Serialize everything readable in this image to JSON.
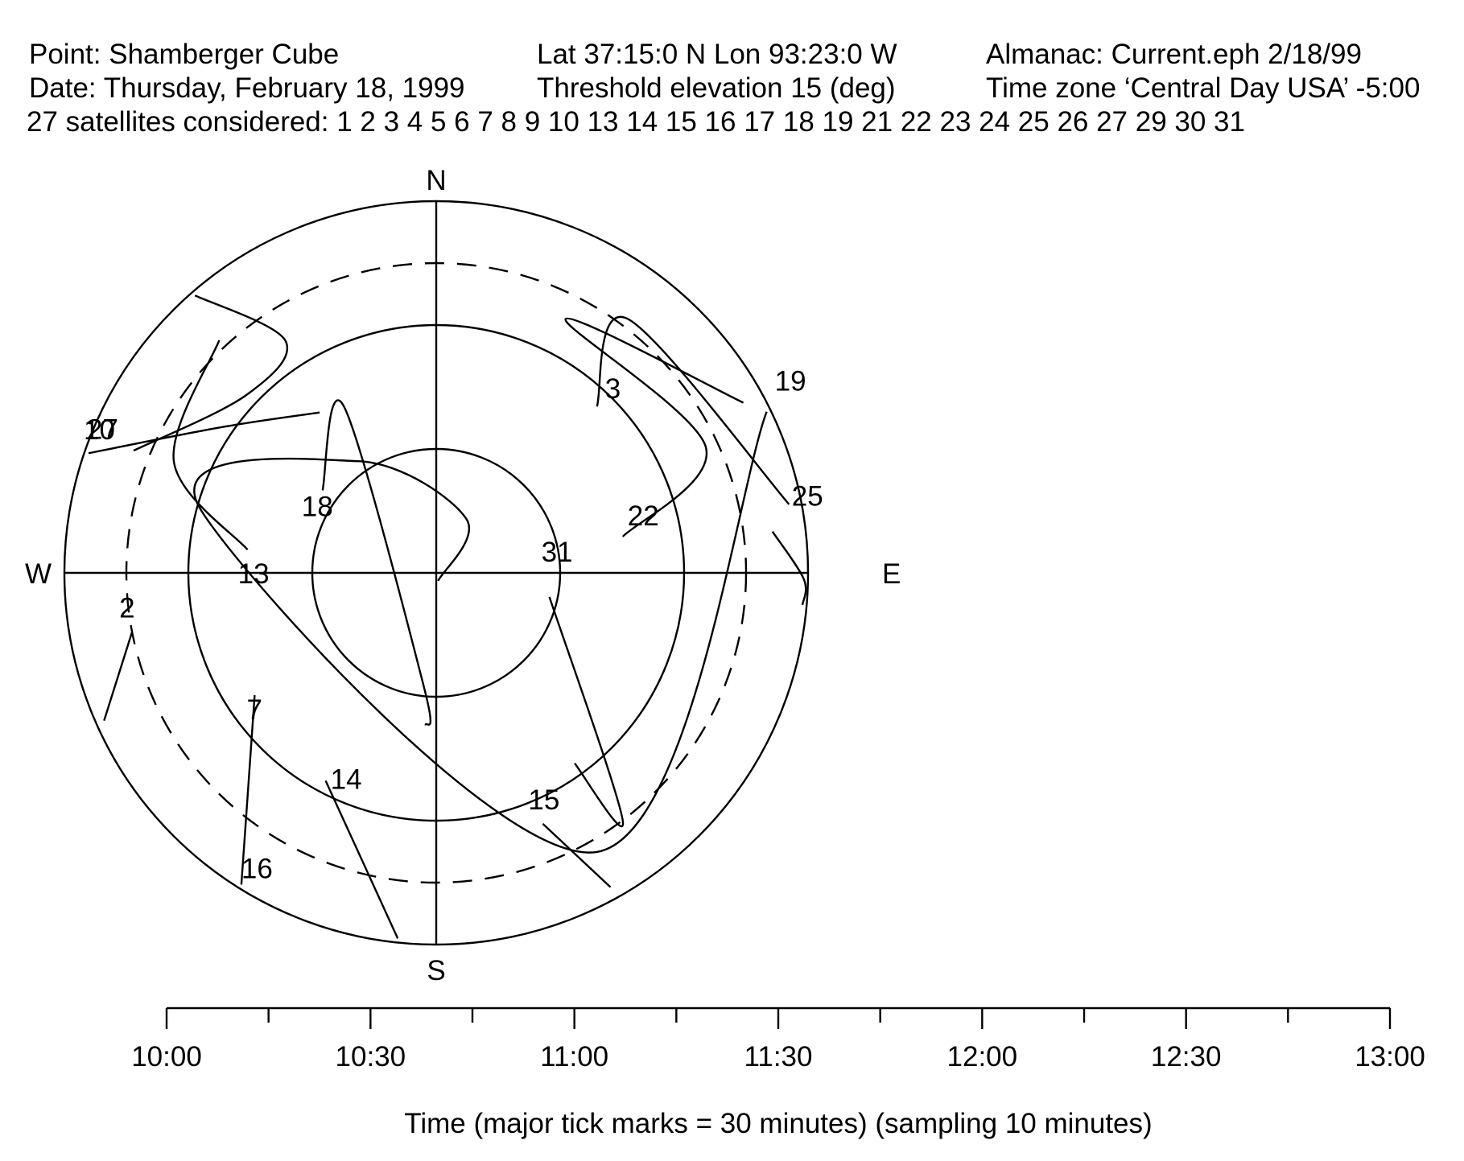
{
  "header": {
    "point": "Point: Shamberger Cube",
    "date": "Date: Thursday, February 18, 1999",
    "satellites": "27 satellites considered: 1 2 3 4 5 6 7 8 9 10 13 14 15 16 17 18 19 21 22 23 24 25 26 27 29 30 31",
    "latlon": "Lat 37:15:0 N Lon 93:23:0 W",
    "threshold": "Threshold elevation 15 (deg)",
    "almanac": "Almanac: Current.eph 2/18/99",
    "timezone": "Time zone ‘Central Day USA’ -5:00"
  },
  "chart_data": [
    {
      "type": "polar-skyplot",
      "compass_labels": {
        "north": "N",
        "south": "S",
        "east": "E",
        "west": "W"
      },
      "elevation_rings_deg": [
        0,
        30,
        60
      ],
      "threshold_ring_deg": 15,
      "threshold_ring_style": "dashed",
      "satellites": [
        {
          "prn": "2",
          "track": [
            [
              259,
              15
            ],
            [
              246,
              2
            ]
          ]
        },
        {
          "prn": "3",
          "track": [
            [
              44,
              34
            ],
            [
              37,
              13
            ],
            [
              79,
              3
            ]
          ]
        },
        {
          "prn": "7",
          "track": [
            [
              236,
              37
            ],
            [
              212,
              1
            ]
          ]
        },
        {
          "prn": "10",
          "track": [
            [
              292,
              11
            ],
            [
              313,
              27
            ],
            [
              327,
              23
            ],
            [
              319,
              1
            ]
          ]
        },
        {
          "prn": "13",
          "track": [
            [
              277,
              44
            ],
            [
              293,
              21
            ],
            [
              317,
              13
            ]
          ]
        },
        {
          "prn": "14",
          "track": [
            [
              208,
              33
            ],
            [
              186,
              1
            ]
          ]
        },
        {
          "prn": "15",
          "track": [
            [
              157,
              24
            ],
            [
              151,
              3
            ]
          ]
        },
        {
          "prn": "16",
          "track": [
            [
              212,
              1
            ]
          ]
        },
        {
          "prn": "18",
          "track": [
            [
              306,
              56
            ],
            [
              331,
              44
            ],
            [
              186,
              62
            ],
            [
              184,
              53
            ]
          ]
        },
        {
          "prn": "19",
          "track": [
            [
              64,
              1
            ],
            [
              150,
              12
            ],
            [
              285,
              31
            ],
            [
              325,
              57
            ],
            [
              29,
              75
            ],
            [
              167,
              88
            ]
          ]
        },
        {
          "prn": "22",
          "track": [
            [
              79,
              44
            ],
            [
              65,
              18
            ],
            [
              27,
              21
            ],
            [
              61,
              5
            ]
          ]
        },
        {
          "prn": "25",
          "track": [
            [
              83,
              8
            ],
            [
              91,
              1
            ],
            [
              95,
              1
            ]
          ]
        },
        {
          "prn": "27",
          "track": [
            [
              289,
              1
            ],
            [
              304,
              27
            ],
            [
              324,
              42
            ]
          ]
        },
        {
          "prn": "31",
          "track": [
            [
              102,
              62
            ],
            [
              143,
              15
            ],
            [
              144,
              33
            ]
          ]
        }
      ]
    },
    {
      "type": "timeline",
      "tick_labels": [
        "10:00",
        "10:30",
        "11:00",
        "11:30",
        "12:00",
        "12:30",
        "13:00"
      ],
      "xlabel": "Time (major tick marks = 30 minutes) (sampling 10 minutes)",
      "range": [
        "10:00",
        "13:00"
      ],
      "major_tick_minutes": 30,
      "minor_tick_minutes": 15
    }
  ]
}
